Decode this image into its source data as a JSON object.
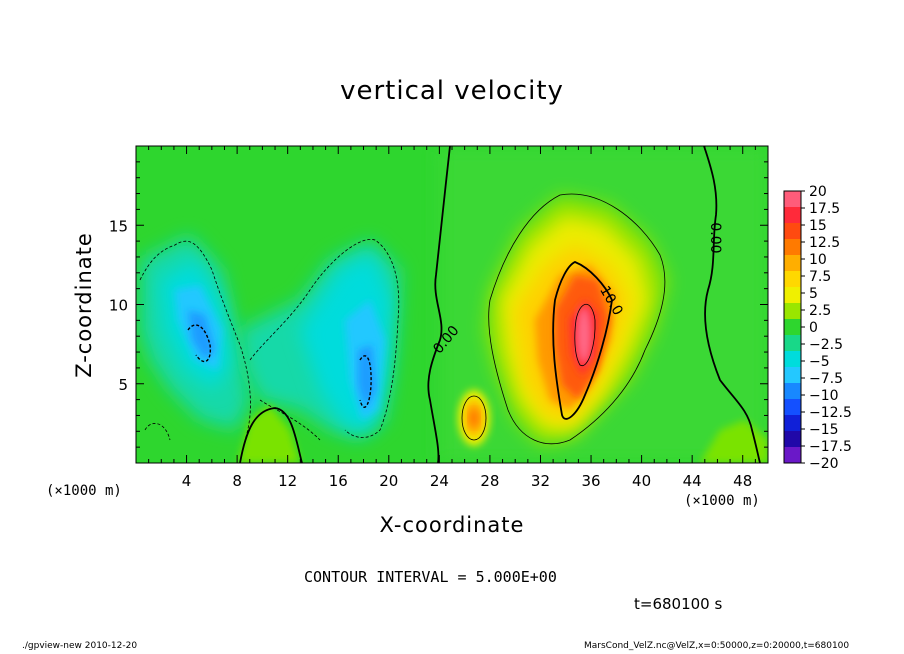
{
  "chart_data": {
    "type": "heatmap",
    "title": "vertical velocity",
    "xlabel": "X-coordinate",
    "ylabel": "Z-coordinate",
    "x_unit_label": "(×1000 m)",
    "xlim": [
      0,
      50
    ],
    "ylim": [
      0,
      20
    ],
    "x_ticks": [
      "4",
      "8",
      "12",
      "16",
      "20",
      "24",
      "28",
      "32",
      "36",
      "40",
      "44",
      "48"
    ],
    "y_ticks": [
      "5",
      "10",
      "15"
    ],
    "x_tick_values": [
      4,
      8,
      12,
      16,
      20,
      24,
      28,
      32,
      36,
      40,
      44,
      48
    ],
    "y_tick_values": [
      5,
      10,
      15
    ],
    "contour_labels": [
      {
        "text": "0.00",
        "x": 45.5,
        "z": 14.2
      },
      {
        "text": "0.00",
        "x": 24.8,
        "z": 7.6
      },
      {
        "text": "10.0",
        "x": 37.3,
        "z": 10.1
      }
    ],
    "features": [
      {
        "kind": "downdraft",
        "x": 4.8,
        "z": 8.0,
        "peak": -12
      },
      {
        "kind": "downdraft",
        "x": 18.0,
        "z": 5.2,
        "peak": -10
      },
      {
        "kind": "updraft",
        "x": 35.3,
        "z": 8.2,
        "peak": 19
      },
      {
        "kind": "updraft",
        "x": 26.8,
        "z": 3.0,
        "peak": 12
      }
    ],
    "colorbar": {
      "levels": [
        "20",
        "17.5",
        "15",
        "12.5",
        "10",
        "7.5",
        "5",
        "2.5",
        "0",
        "−2.5",
        "−5",
        "−7.5",
        "−10",
        "−12.5",
        "−15",
        "−17.5",
        "−20"
      ],
      "colors": [
        "#ff5c7a",
        "#ff2a3a",
        "#ff4a10",
        "#ff7a00",
        "#ffae00",
        "#ffd800",
        "#f0f000",
        "#9ae600",
        "#2ed62e",
        "#18d888",
        "#00dcdc",
        "#24c8ff",
        "#1888ff",
        "#1450ff",
        "#1020d8",
        "#2008a8",
        "#6a18c8"
      ]
    }
  },
  "contour_interval": "CONTOUR INTERVAL = 5.000E+00",
  "time_label": "t=680100 s",
  "footer_left": "./gpview-new  2010-12-20",
  "footer_right": "MarsCond_VelZ.nc@VelZ,x=0:50000,z=0:20000,t=680100"
}
